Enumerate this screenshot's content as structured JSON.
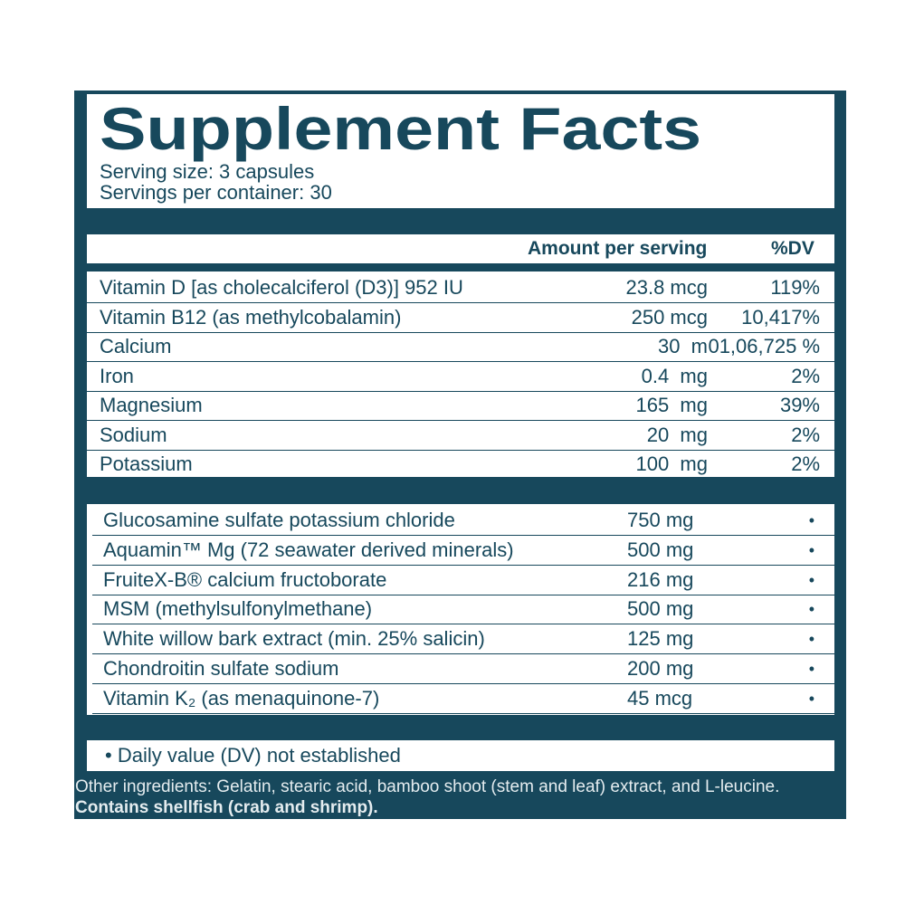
{
  "header": {
    "title": "Supplement Facts",
    "serving_size": "Serving size: 3 capsules",
    "servings_per_container": "Servings per container: 30"
  },
  "columns": {
    "amount": "Amount per serving",
    "dv": "%DV"
  },
  "vitamins": [
    [
      "Vitamin D [as cholecalciferol (D3)] 952 IU",
      "23.8 mcg",
      "119%"
    ],
    [
      "Vitamin B12 (as methylcobalamin)",
      "250 mcg",
      "10,417%"
    ],
    [
      "Calcium",
      "30  m",
      "01,06,725 %"
    ],
    [
      "Iron",
      "0.4  mg",
      "2%"
    ],
    [
      "Magnesium",
      "165  mg",
      "39%"
    ],
    [
      "Sodium",
      "20  mg",
      "2%"
    ],
    [
      "Potassium",
      "100  mg",
      "2%"
    ]
  ],
  "other": [
    [
      "Glucosamine sulfate potassium chloride",
      "750 mg",
      "•"
    ],
    [
      "Aquamin™ Mg (72 seawater derived minerals)",
      "500 mg",
      "•"
    ],
    [
      "FruiteX-B® calcium fructoborate",
      "216 mg",
      "•"
    ],
    [
      "MSM (methylsulfonylmethane)",
      "500 mg",
      "•"
    ],
    [
      "White willow bark extract (min. 25% salicin)",
      "125 mg",
      "•"
    ],
    [
      "Chondroitin sulfate sodium",
      "200 mg",
      "•"
    ],
    [
      "Vitamin K₂ (as menaquinone-7)",
      "45 mcg",
      "•"
    ]
  ],
  "footnote": "• Daily value (DV) not established",
  "footer": {
    "ingredients": "Other ingredients: Gelatin, stearic acid, bamboo shoot (stem and leaf) extract, and L-leucine.",
    "allergens": "Contains shellfish (crab and shrimp)."
  }
}
